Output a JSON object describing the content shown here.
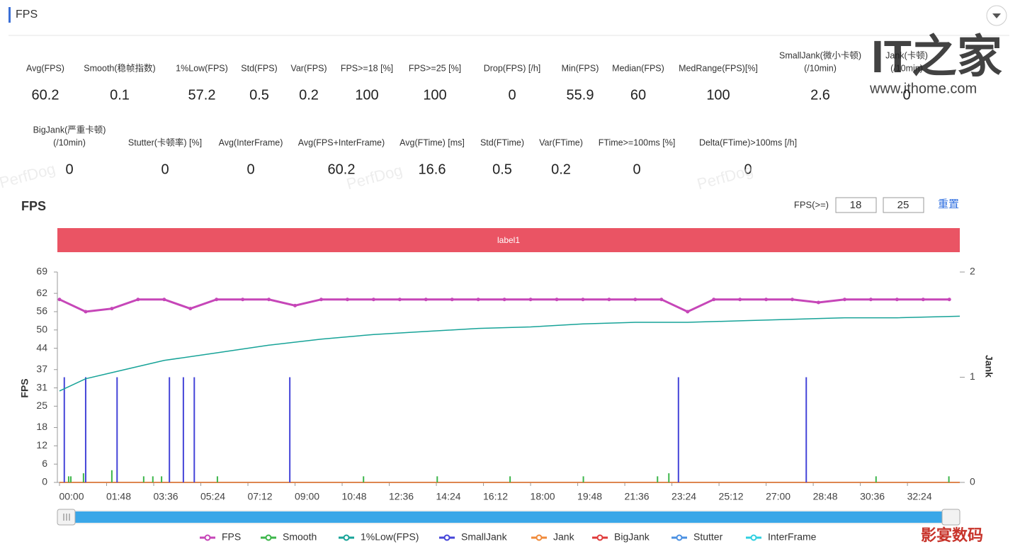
{
  "header": {
    "title": "FPS"
  },
  "stats": [
    [
      {
        "label": [
          "Avg(FPS)"
        ],
        "value": 60.2
      },
      {
        "label": [
          "Smooth(稳帧指数)"
        ],
        "value": 0.1
      },
      {
        "label": [
          "1%Low(FPS)"
        ],
        "value": 57.2
      },
      {
        "label": [
          "Std(FPS)"
        ],
        "value": 0.5
      },
      {
        "label": [
          "Var(FPS)"
        ],
        "value": 0.2
      },
      {
        "label": [
          "FPS>=18 [%]"
        ],
        "value": 100
      },
      {
        "label": [
          "FPS>=25 [%]"
        ],
        "value": 100
      },
      {
        "label": [
          "Drop(FPS) [/h]"
        ],
        "value": 0
      },
      {
        "label": [
          "Min(FPS)"
        ],
        "value": 55.9
      },
      {
        "label": [
          "Median(FPS)"
        ],
        "value": 60
      },
      {
        "label": [
          "MedRange(FPS)[%]"
        ],
        "value": 100
      },
      {
        "label": [
          "SmallJank(微小卡顿)",
          "(/10min)"
        ],
        "value": 2.6
      },
      {
        "label": [
          "Jank(卡顿)",
          "(/10min)"
        ],
        "value": 0
      }
    ],
    [
      {
        "label": [
          "BigJank(严重卡顿)",
          "(/10min)"
        ],
        "value": 0
      },
      {
        "label": [
          "Stutter(卡顿率) [%]"
        ],
        "value": 0
      },
      {
        "label": [
          "Avg(InterFrame)"
        ],
        "value": 0
      },
      {
        "label": [
          "Avg(FPS+InterFrame)"
        ],
        "value": 60.2
      },
      {
        "label": [
          "Avg(FTime) [ms]"
        ],
        "value": 16.6
      },
      {
        "label": [
          "Std(FTime)"
        ],
        "value": 0.5
      },
      {
        "label": [
          "Var(FTime)"
        ],
        "value": 0.2
      },
      {
        "label": [
          "FTime>=100ms [%]"
        ],
        "value": 0
      },
      {
        "label": [
          "Delta(FTime)>100ms [/h]"
        ],
        "value": 0
      }
    ]
  ],
  "watermarks": {
    "site": "IT之家",
    "url": "www.ithome.com",
    "tool": "PerfDog",
    "brand": "影宴数码"
  },
  "chart_data": {
    "type": "line",
    "title": "FPS",
    "threshold_label": "FPS(>=)",
    "thresholds": [
      18,
      25
    ],
    "reset": "重置",
    "band_label": "label1",
    "ylabel": "FPS",
    "y2label": "Jank",
    "xlim": [
      0,
      2064
    ],
    "xticks": [
      {
        "value": 0,
        "label": "00:00"
      },
      {
        "value": 108,
        "label": "01:48"
      },
      {
        "value": 216,
        "label": "03:36"
      },
      {
        "value": 324,
        "label": "05:24"
      },
      {
        "value": 432,
        "label": "07:12"
      },
      {
        "value": 540,
        "label": "09:00"
      },
      {
        "value": 648,
        "label": "10:48"
      },
      {
        "value": 756,
        "label": "12:36"
      },
      {
        "value": 864,
        "label": "14:24"
      },
      {
        "value": 972,
        "label": "16:12"
      },
      {
        "value": 1080,
        "label": "18:00"
      },
      {
        "value": 1188,
        "label": "19:48"
      },
      {
        "value": 1296,
        "label": "21:36"
      },
      {
        "value": 1404,
        "label": "23:24"
      },
      {
        "value": 1512,
        "label": "25:12"
      },
      {
        "value": 1620,
        "label": "27:00"
      },
      {
        "value": 1728,
        "label": "28:48"
      },
      {
        "value": 1836,
        "label": "30:36"
      },
      {
        "value": 1944,
        "label": "32:24"
      }
    ],
    "ylim": [
      0,
      69
    ],
    "yticks": [
      0,
      6,
      12,
      18,
      25,
      31,
      37,
      44,
      50,
      56,
      62,
      69
    ],
    "y2lim": [
      0,
      2
    ],
    "y2ticks": [
      0,
      1,
      2
    ],
    "series": [
      {
        "name": "FPS",
        "color": "#c646b8",
        "style": "line",
        "x": [
          0,
          60,
          120,
          180,
          240,
          300,
          360,
          420,
          480,
          540,
          600,
          660,
          720,
          780,
          840,
          900,
          960,
          1020,
          1080,
          1140,
          1200,
          1260,
          1320,
          1380,
          1440,
          1500,
          1560,
          1620,
          1680,
          1740,
          1800,
          1860,
          1920,
          1980,
          2040
        ],
        "values": [
          60,
          56,
          57,
          60,
          60,
          57,
          60,
          60,
          60,
          58,
          60,
          60,
          60,
          60,
          60,
          60,
          60,
          60,
          60,
          60,
          60,
          60,
          60,
          60,
          56,
          60,
          60,
          60,
          60,
          59,
          60,
          60,
          60,
          60,
          60
        ]
      },
      {
        "name": "Smooth",
        "color": "#3cb64a",
        "style": "spike",
        "x": [
          21,
          26,
          55,
          120,
          193,
          214,
          234,
          362,
          697,
          866,
          1033,
          1201,
          1371,
          1397,
          1872,
          2039
        ],
        "values": [
          2,
          2,
          3,
          4,
          2,
          2,
          2,
          2,
          2,
          2,
          2,
          2,
          2,
          3,
          2,
          2
        ]
      },
      {
        "name": "1%Low(FPS)",
        "color": "#17a398",
        "style": "line",
        "x": [
          0,
          60,
          120,
          240,
          360,
          480,
          600,
          720,
          840,
          960,
          1080,
          1200,
          1320,
          1440,
          1560,
          1680,
          1800,
          1920,
          2064
        ],
        "values": [
          30,
          34,
          36,
          40,
          42.5,
          45,
          47,
          48.5,
          49.5,
          50.5,
          51,
          52,
          52.5,
          52.5,
          53,
          53.5,
          54,
          54,
          54.5
        ]
      },
      {
        "name": "SmallJank",
        "color": "#4444d8",
        "style": "spike",
        "axis": "y2",
        "x": [
          11,
          60,
          132,
          252,
          284,
          309,
          528,
          1419,
          1712
        ],
        "values": [
          1,
          1,
          1,
          1,
          1,
          1,
          1,
          1,
          1
        ]
      },
      {
        "name": "Jank",
        "color": "#f08a3a",
        "style": "line",
        "axis": "y2",
        "x": [
          0,
          2064
        ],
        "values": [
          0,
          0
        ]
      },
      {
        "name": "BigJank",
        "color": "#e03a3a",
        "style": "line",
        "axis": "y2",
        "x": [
          0,
          2064
        ],
        "values": [
          0,
          0
        ]
      },
      {
        "name": "Stutter",
        "color": "#4a90e2",
        "style": "line",
        "axis": "y2",
        "x": [
          0,
          2064
        ],
        "values": [
          0,
          0
        ]
      },
      {
        "name": "InterFrame",
        "color": "#2fd0e0",
        "style": "line",
        "x": [
          0,
          2064
        ],
        "values": [
          0,
          0
        ]
      }
    ]
  }
}
